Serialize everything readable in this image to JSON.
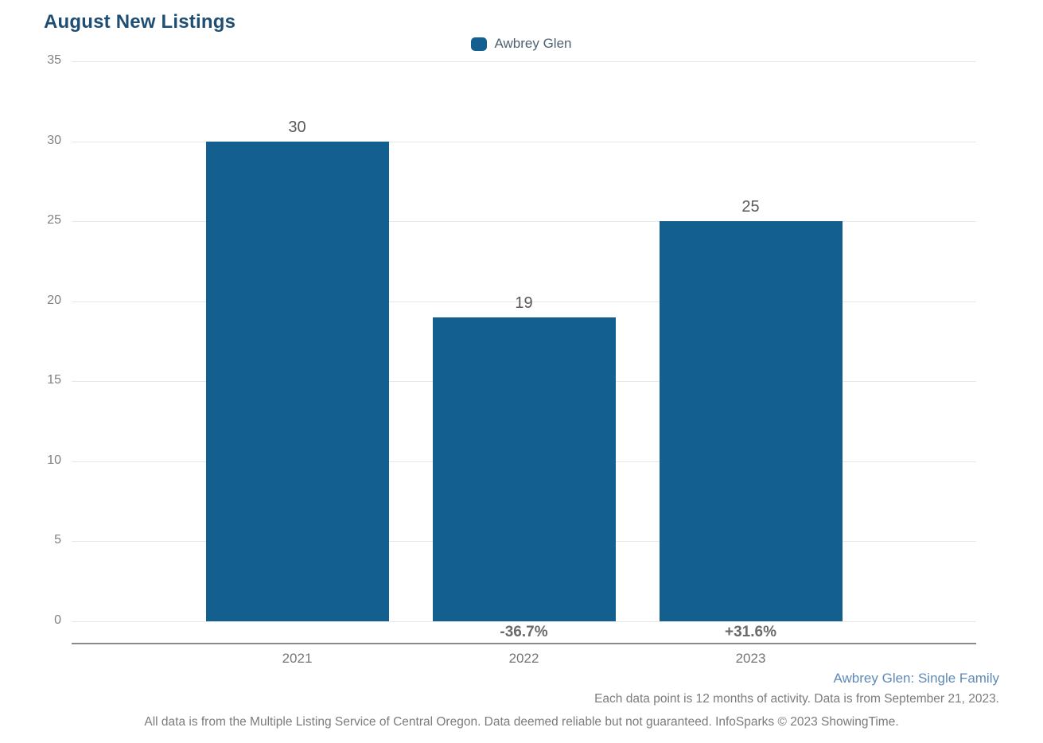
{
  "page": {
    "title": "August New Listings",
    "footnote_series": "Awbrey Glen: Single Family",
    "footnote_data": "Each data point is 12 months of activity. Data is from September 21, 2023.",
    "footer_disclaimer": "All data is from the Multiple Listing Service of Central Oregon. Data deemed reliable but not guaranteed. InfoSparks © 2023 ShowingTime."
  },
  "colors": {
    "bar": "#135f8f",
    "title": "#1f4e74",
    "legend_text": "#4d6071",
    "link_blue": "#5f8ab8",
    "gridline": "#e6e6e6",
    "axis_line": "#8a8a8a",
    "tick_text": "#808080",
    "value_label": "#58585a",
    "pct_label": "#6a6a6a",
    "year_label": "#757575",
    "footnote_text": "#7c7c7c"
  },
  "chart_data": {
    "type": "bar",
    "title": "August New Listings",
    "legend_entries": [
      {
        "name": "Awbrey Glen",
        "color": "#135f8f"
      }
    ],
    "legend_position": "top-center",
    "categories": [
      "2021",
      "2022",
      "2023"
    ],
    "series": [
      {
        "name": "Awbrey Glen",
        "values": [
          30,
          19,
          25
        ]
      }
    ],
    "value_labels": [
      "30",
      "19",
      "25"
    ],
    "pct_change_labels": [
      "",
      "-36.7%",
      "+31.6%"
    ],
    "xlabel": "",
    "ylabel": "",
    "ylim": [
      0,
      35
    ],
    "yticks": [
      0,
      5,
      10,
      15,
      20,
      25,
      30,
      35
    ],
    "grid": true
  }
}
